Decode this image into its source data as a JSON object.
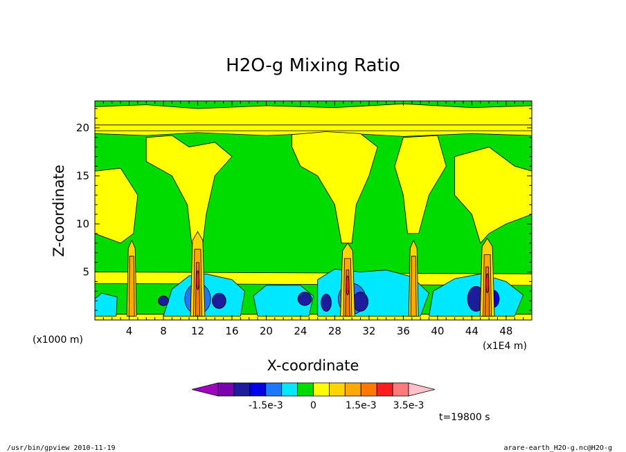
{
  "chart_data": {
    "type": "heatmap",
    "title": "H2O-g Mixing Ratio",
    "xlabel": "X-coordinate",
    "ylabel": "Z-coordinate",
    "x_unit_left": "(x1000 m)",
    "x_unit_right": "(x1E4 m)",
    "xlim": [
      0,
      51
    ],
    "ylim": [
      0,
      22.8
    ],
    "x_ticks": [
      "4",
      "8",
      "12",
      "16",
      "20",
      "24",
      "28",
      "32",
      "36",
      "40",
      "44",
      "48"
    ],
    "x_tick_values": [
      4,
      8,
      12,
      16,
      20,
      24,
      28,
      32,
      36,
      40,
      44,
      48
    ],
    "y_ticks": [
      "5",
      "10",
      "15",
      "20"
    ],
    "y_tick_values": [
      5,
      10,
      15,
      20
    ],
    "colorbar": {
      "colors": [
        "#a000c0",
        "#7a00b0",
        "#1c1c9c",
        "#0000e8",
        "#1e78ff",
        "#00e8ff",
        "#00dc00",
        "#ffff00",
        "#ffd400",
        "#ffa800",
        "#ff7800",
        "#ff1e1e",
        "#ff7a7a",
        "#ffc0c8"
      ],
      "labels": [
        "-1.5e-3",
        "0",
        "1.5e-3",
        "3.5e-3"
      ]
    },
    "time_label": "t=19800 s",
    "background_level": "0",
    "features": [
      {
        "kind": "updraft",
        "x": 12,
        "z_top": 9.2,
        "level": "3.5e-3"
      },
      {
        "kind": "updraft",
        "x": 29.5,
        "z_top": 8,
        "level": "3.5e-3"
      },
      {
        "kind": "updraft",
        "x": 45.8,
        "z_top": 8.5,
        "level": "3.5e-3"
      },
      {
        "kind": "updraft",
        "x": 4.3,
        "z_top": 8.3,
        "level": "1.5e-3"
      },
      {
        "kind": "updraft",
        "x": 37.2,
        "z_top": 8.3,
        "level": "1.5e-3"
      }
    ]
  },
  "footer": {
    "left": "/usr/bin/gpview   2010-11-19",
    "right": "arare-earth_H2O-g.nc@H2O-g"
  }
}
